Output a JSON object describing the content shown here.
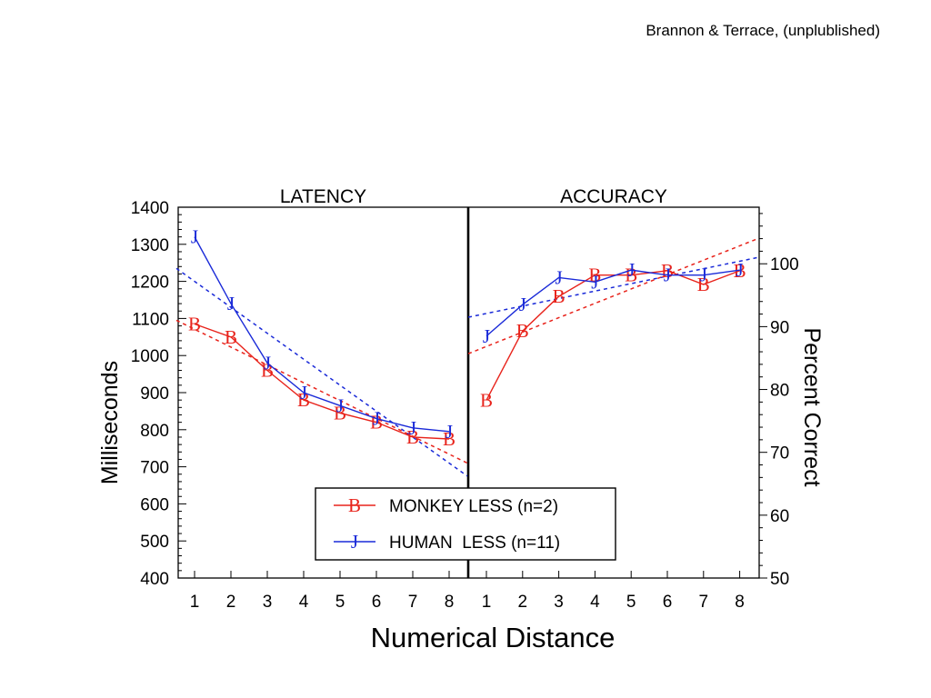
{
  "credit": "Brannon & Terrace, (unplublished)",
  "chart_data": {
    "type": "line",
    "x_label": "Numerical  Distance",
    "x_categories": [
      "1",
      "2",
      "3",
      "4",
      "5",
      "6",
      "7",
      "8"
    ],
    "panels": [
      {
        "title": "LATENCY",
        "y_label": "Milliseconds",
        "y_axis_side": "left",
        "ylim": [
          400,
          1400
        ],
        "y_ticks": [
          400,
          500,
          600,
          700,
          800,
          900,
          1000,
          1100,
          1200,
          1300,
          1400
        ],
        "series": [
          {
            "name": "MONKEY LESS (n=2)",
            "marker": "B",
            "color": "#e8231b",
            "x": [
              1,
              2,
              3,
              4,
              5,
              6,
              7,
              8
            ],
            "values": [
              1085,
              1050,
              960,
              880,
              845,
              820,
              780,
              775
            ]
          },
          {
            "name": "HUMAN  LESS (n=11)",
            "marker": "J",
            "color": "#1a2ad8",
            "x": [
              1,
              2,
              3,
              4,
              5,
              6,
              7,
              8
            ],
            "values": [
              1320,
              1140,
              980,
              900,
              865,
              830,
              805,
              795
            ]
          }
        ],
        "trend_lines": [
          {
            "series": "MONKEY LESS (n=2)",
            "color": "#e8231b",
            "x": [
              0.5,
              8.5
            ],
            "values": [
              1095,
              710
            ]
          },
          {
            "series": "HUMAN  LESS (n=11)",
            "color": "#1a2ad8",
            "x": [
              0.5,
              8.5
            ],
            "values": [
              1235,
              675
            ]
          }
        ]
      },
      {
        "title": "ACCURACY",
        "y_label": "Percent Correct",
        "y_axis_side": "right",
        "ylim": [
          50,
          109
        ],
        "y_ticks": [
          50,
          60,
          70,
          80,
          90,
          100
        ],
        "series": [
          {
            "name": "MONKEY LESS (n=2)",
            "marker": "B",
            "color": "#e8231b",
            "x": [
              1,
              2,
              3,
              4,
              5,
              6,
              7,
              8
            ],
            "values": [
              78.3,
              89.3,
              94.8,
              98.2,
              98.2,
              98.9,
              96.7,
              98.9
            ]
          },
          {
            "name": "HUMAN  LESS (n=11)",
            "marker": "J",
            "color": "#1a2ad8",
            "x": [
              1,
              2,
              3,
              4,
              5,
              6,
              7,
              8
            ],
            "values": [
              88.5,
              93.5,
              97.8,
              97.1,
              99.0,
              98.2,
              98.2,
              99.0
            ]
          }
        ],
        "trend_lines": [
          {
            "series": "MONKEY LESS (n=2)",
            "color": "#e8231b",
            "x": [
              0.5,
              8.5
            ],
            "values": [
              85.7,
              104.0
            ]
          },
          {
            "series": "HUMAN  LESS (n=11)",
            "color": "#1a2ad8",
            "x": [
              0.5,
              8.5
            ],
            "values": [
              91.5,
              101.0
            ]
          }
        ]
      }
    ],
    "legend": {
      "placement": "bottom-center",
      "entries": [
        {
          "label": "MONKEY LESS (n=2)",
          "marker": "B",
          "color": "#e8231b"
        },
        {
          "label": "HUMAN  LESS (n=11)",
          "marker": "J",
          "color": "#1a2ad8"
        }
      ]
    },
    "grid": false
  }
}
